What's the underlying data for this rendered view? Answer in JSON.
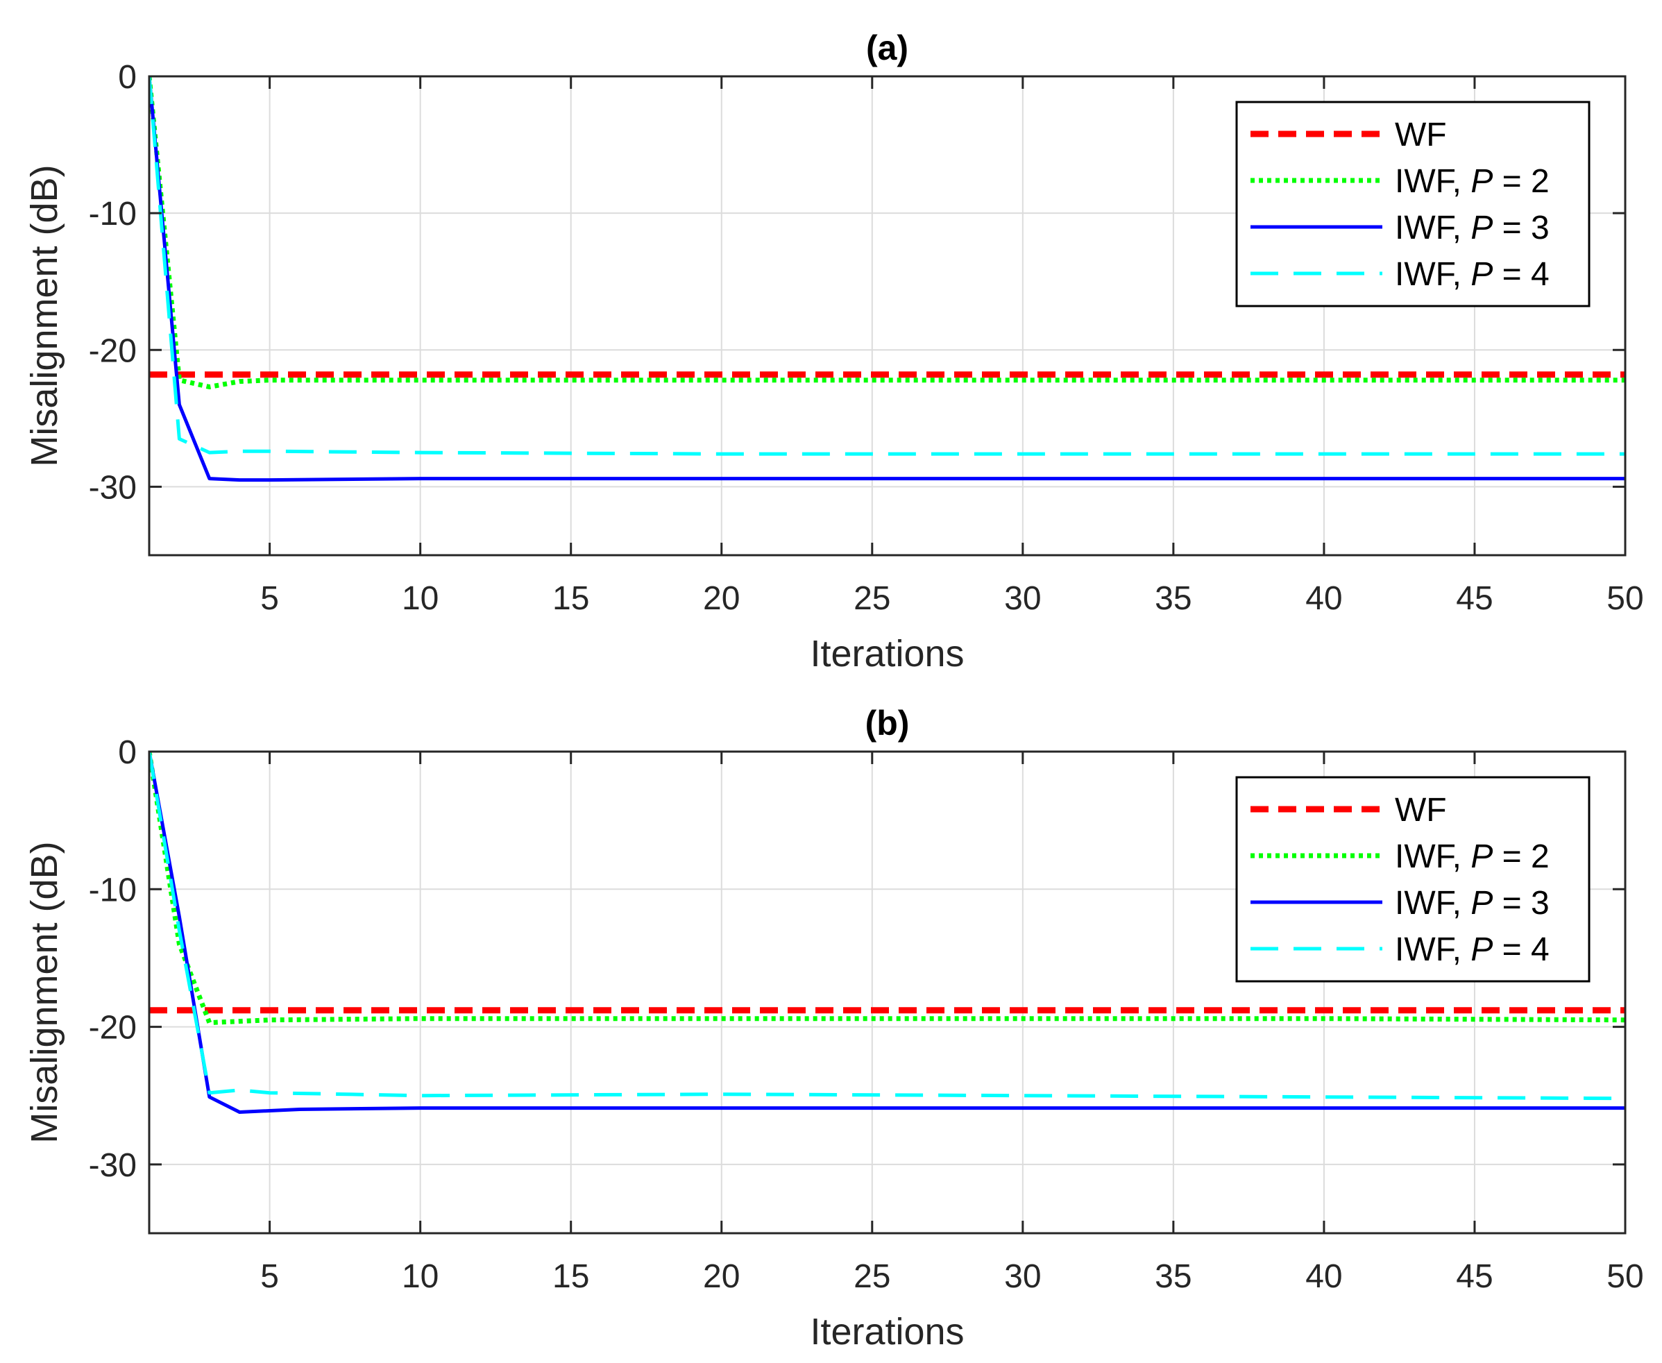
{
  "chart_data": [
    {
      "type": "line",
      "title": "(a)",
      "xlabel": "Iterations",
      "ylabel": "Misalignment (dB)",
      "xlim": [
        1,
        50
      ],
      "ylim": [
        -35,
        0
      ],
      "xticks": [
        5,
        10,
        15,
        20,
        25,
        30,
        35,
        40,
        45,
        50
      ],
      "yticks": [
        0,
        -10,
        -20,
        -30
      ],
      "grid": true,
      "legend_position": "top-right",
      "series": [
        {
          "name": "WF",
          "label_pre": "WF",
          "label_var": "",
          "label_post": "",
          "color": "#ff0000",
          "style": "dashed",
          "x": [
            1,
            50
          ],
          "y": [
            -21.8,
            -21.8
          ]
        },
        {
          "name": "IWF, P = 2",
          "label_pre": "IWF, ",
          "label_var": "P",
          "label_post": " = 2",
          "color": "#00ff00",
          "style": "dotted",
          "x": [
            1,
            2,
            3,
            4,
            5,
            10,
            20,
            30,
            40,
            50
          ],
          "y": [
            0,
            -22.2,
            -22.7,
            -22.3,
            -22.2,
            -22.2,
            -22.2,
            -22.2,
            -22.2,
            -22.2
          ]
        },
        {
          "name": "IWF, P = 3",
          "label_pre": "IWF, ",
          "label_var": "P",
          "label_post": " = 3",
          "color": "#0000ff",
          "style": "solid",
          "x": [
            1,
            2,
            3,
            4,
            5,
            10,
            20,
            30,
            40,
            50
          ],
          "y": [
            0,
            -24,
            -29.4,
            -29.5,
            -29.5,
            -29.4,
            -29.4,
            -29.4,
            -29.4,
            -29.4
          ]
        },
        {
          "name": "IWF, P = 4",
          "label_pre": "IWF, ",
          "label_var": "P",
          "label_post": " = 4",
          "color": "#00ffff",
          "style": "longdash",
          "x": [
            1,
            2,
            3,
            4,
            5,
            10,
            20,
            30,
            40,
            50
          ],
          "y": [
            0,
            -26.5,
            -27.5,
            -27.4,
            -27.4,
            -27.5,
            -27.6,
            -27.6,
            -27.6,
            -27.6
          ]
        }
      ]
    },
    {
      "type": "line",
      "title": "(b)",
      "xlabel": "Iterations",
      "ylabel": "Misalignment (dB)",
      "xlim": [
        1,
        50
      ],
      "ylim": [
        -35,
        0
      ],
      "xticks": [
        5,
        10,
        15,
        20,
        25,
        30,
        35,
        40,
        45,
        50
      ],
      "yticks": [
        0,
        -10,
        -20,
        -30
      ],
      "grid": true,
      "legend_position": "top-right",
      "series": [
        {
          "name": "WF",
          "label_pre": "WF",
          "label_var": "",
          "label_post": "",
          "color": "#ff0000",
          "style": "dashed",
          "x": [
            1,
            50
          ],
          "y": [
            -18.8,
            -18.8
          ]
        },
        {
          "name": "IWF, P = 2",
          "label_pre": "IWF, ",
          "label_var": "P",
          "label_post": " = 2",
          "color": "#00ff00",
          "style": "dotted",
          "x": [
            1,
            2,
            3,
            4,
            5,
            10,
            20,
            30,
            40,
            50
          ],
          "y": [
            0,
            -14,
            -19.7,
            -19.6,
            -19.5,
            -19.4,
            -19.4,
            -19.4,
            -19.4,
            -19.5
          ]
        },
        {
          "name": "IWF, P = 3",
          "label_pre": "IWF, ",
          "label_var": "P",
          "label_post": " = 3",
          "color": "#0000ff",
          "style": "solid",
          "x": [
            1,
            2,
            3,
            4,
            5,
            6,
            10,
            20,
            30,
            40,
            50
          ],
          "y": [
            0,
            -12,
            -25.1,
            -26.2,
            -26.1,
            -26.0,
            -25.9,
            -25.9,
            -25.9,
            -25.9,
            -25.9
          ]
        },
        {
          "name": "IWF, P = 4",
          "label_pre": "IWF, ",
          "label_var": "P",
          "label_post": " = 4",
          "color": "#00ffff",
          "style": "longdash",
          "x": [
            1,
            2,
            3,
            4,
            5,
            10,
            20,
            30,
            40,
            50
          ],
          "y": [
            0,
            -13,
            -24.8,
            -24.6,
            -24.8,
            -25.0,
            -24.9,
            -25.0,
            -25.1,
            -25.2
          ]
        }
      ]
    }
  ]
}
